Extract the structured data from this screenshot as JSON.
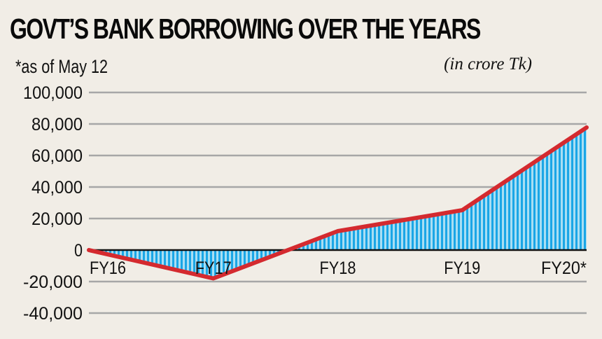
{
  "header": {
    "title": "GOVT’S BANK BORROWING OVER THE YEARS",
    "note": "*as of May 12",
    "unit": "(in crore Tk)"
  },
  "colors": {
    "background": "#f1ede6",
    "line": "#d42a2f",
    "fill_dark": "#1aa6e6",
    "fill_light": "#a9def3",
    "grid": "#a7a7a7",
    "zero_axis": "#111111"
  },
  "chart_data": {
    "type": "line",
    "title": "GOVT’S BANK BORROWING OVER THE YEARS",
    "subtitle": "*as of May 12",
    "annotations": [
      "(in crore Tk)"
    ],
    "xlabel": "",
    "ylabel": "in crore Tk",
    "categories": [
      "FY16",
      "FY17",
      "FY18",
      "FY19",
      "FY20*"
    ],
    "series": [
      {
        "name": "Govt bank borrowing",
        "values": [
          0,
          -18000,
          12000,
          25300,
          77800
        ]
      }
    ],
    "yticks": [
      "100,000",
      "80,000",
      "60,000",
      "40,000",
      "20,000",
      "0",
      "-20,000",
      "-40,000"
    ],
    "ylim": [
      -40000,
      100000
    ],
    "grid": true,
    "legend": "none",
    "area_fill": "striped blue under line"
  }
}
